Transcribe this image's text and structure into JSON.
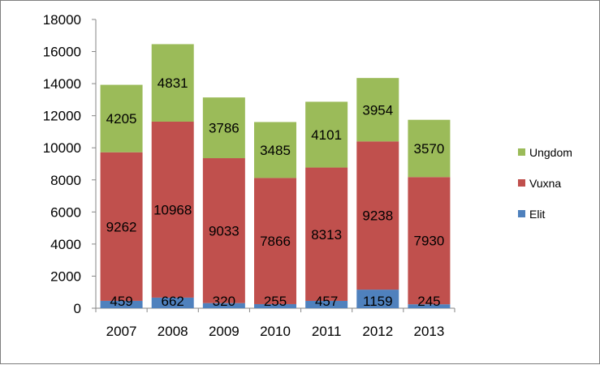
{
  "chart_data": {
    "type": "bar",
    "stacked": true,
    "categories": [
      "2007",
      "2008",
      "2009",
      "2010",
      "2011",
      "2012",
      "2013"
    ],
    "series": [
      {
        "name": "Elit",
        "color": "#4f81bd",
        "values": [
          459,
          662,
          320,
          255,
          457,
          1159,
          245
        ]
      },
      {
        "name": "Vuxna",
        "color": "#c0504d",
        "values": [
          9262,
          10968,
          9033,
          7866,
          8313,
          9238,
          7930
        ]
      },
      {
        "name": "Ungdom",
        "color": "#9bbb59",
        "values": [
          4205,
          4831,
          3786,
          3485,
          4101,
          3954,
          3570
        ]
      }
    ],
    "legend_order": [
      "Ungdom",
      "Vuxna",
      "Elit"
    ],
    "ylim": [
      0,
      18000
    ],
    "yticks": [
      "0",
      "2000",
      "4000",
      "6000",
      "8000",
      "10000",
      "12000",
      "14000",
      "16000",
      "18000"
    ],
    "legend_position": "right",
    "grid": false
  }
}
